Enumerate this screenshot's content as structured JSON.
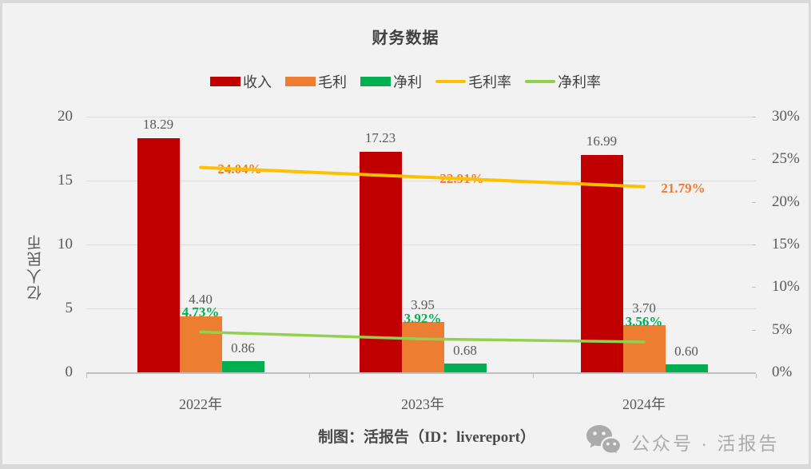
{
  "title": "财务数据",
  "legend": [
    {
      "id": "revenue",
      "label": "收入",
      "marker": "swatch",
      "color": "#c00000"
    },
    {
      "id": "gross-profit",
      "label": "毛利",
      "marker": "swatch",
      "color": "#ed7d31"
    },
    {
      "id": "net-profit",
      "label": "净利",
      "marker": "swatch",
      "color": "#00b050"
    },
    {
      "id": "gross-margin",
      "label": "毛利率",
      "marker": "line",
      "color": "#ffc000"
    },
    {
      "id": "net-margin",
      "label": "净利率",
      "marker": "line",
      "color": "#92d050"
    }
  ],
  "chart_data": {
    "type": "bar+line combo",
    "title": "财务数据",
    "categories": [
      "2022年",
      "2023年",
      "2024年"
    ],
    "category_ids": [
      "2022",
      "2023",
      "2024"
    ],
    "bar_series": [
      {
        "id": "revenue",
        "name": "收入",
        "color": "#c00000",
        "values": [
          18.29,
          17.23,
          16.99
        ],
        "labels": [
          "18.29",
          "17.23",
          "16.99"
        ]
      },
      {
        "id": "gross-profit",
        "name": "毛利",
        "color": "#ed7d31",
        "values": [
          4.4,
          3.95,
          3.7
        ],
        "labels": [
          "4.40",
          "3.95",
          "3.70"
        ]
      },
      {
        "id": "net-profit",
        "name": "净利",
        "color": "#00b050",
        "values": [
          0.86,
          0.68,
          0.6
        ],
        "labels": [
          "0.86",
          "0.68",
          "0.60"
        ]
      }
    ],
    "line_series": [
      {
        "id": "gross-margin",
        "name": "毛利率",
        "color": "#ffc000",
        "label_color": "#ed7d31",
        "values": [
          24.04,
          22.91,
          21.79
        ],
        "labels": [
          "24.04%",
          "22.91%",
          "21.79%"
        ]
      },
      {
        "id": "net-margin",
        "name": "净利率",
        "color": "#92d050",
        "label_color": "#00b050",
        "values": [
          4.73,
          3.92,
          3.56
        ],
        "labels": [
          "4.73%",
          "3.92%",
          "3.56%"
        ]
      }
    ],
    "left_axis": {
      "title": "亿人民币",
      "ticks": [
        "20",
        "15",
        "10",
        "5",
        "0"
      ],
      "min": 0,
      "max": 20
    },
    "right_axis": {
      "ticks": [
        "30%",
        "25%",
        "20%",
        "15%",
        "10%",
        "5%",
        "0%"
      ],
      "min": 0,
      "max": 30
    },
    "grid": true,
    "legend_position": "top"
  },
  "footer": {
    "caption": "制图：活报告（ID：livereport）"
  },
  "watermark": {
    "icon": "wechat-bubbles-icon",
    "text": "公众号 · 活报告"
  },
  "colors": {
    "background": "#f1f2f1",
    "frame_border": "#d9d9d9",
    "gridline": "#dcdcdc",
    "axis": "#bfbfbf",
    "text_dark": "#404040",
    "text_axis": "#595959",
    "watermark_gray": "#ababab"
  }
}
